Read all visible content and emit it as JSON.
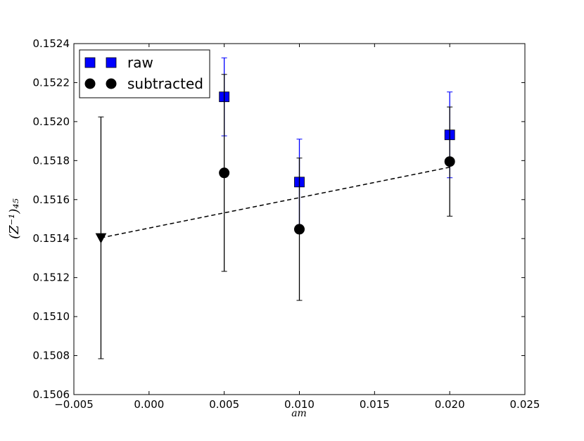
{
  "chart_data": {
    "type": "errorbar",
    "xlabel": "am",
    "ylabel": "(Z⁻¹)₄₅",
    "xlim": [
      -0.005,
      0.025
    ],
    "xticks": [
      {
        "value": -0.005,
        "label": "−0.005"
      },
      {
        "value": 0,
        "label": "0.000"
      },
      0.005,
      {
        "value": 0.01,
        "label": "0.010"
      },
      0.015,
      {
        "value": 0.02,
        "label": "0.020"
      },
      0.025
    ],
    "ylim": [
      0.1506,
      0.1524
    ],
    "yticks": [
      0.1506,
      0.1508,
      {
        "value": 0.151,
        "label": "0.1510"
      },
      0.1512,
      0.1514,
      0.1516,
      0.1518,
      {
        "value": 0.152,
        "label": "0.1520"
      },
      0.1522,
      0.1524
    ],
    "legend": "upper left",
    "series": [
      {
        "name": "raw",
        "color": "#0000ff",
        "marker": "square",
        "x": [
          0.005,
          0.01,
          0.02
        ],
        "values": [
          0.152127,
          0.15169,
          0.151932
        ],
        "errors": [
          0.0002,
          0.00022,
          0.00022
        ]
      },
      {
        "name": "subtracted",
        "color": "#000000",
        "marker": "circle",
        "x": [
          0.005,
          0.01,
          0.02
        ],
        "values": [
          0.151737,
          0.151448,
          0.151795
        ],
        "errors": [
          0.000505,
          0.000365,
          0.00028
        ]
      },
      {
        "color": "#000000",
        "marker": "triangle-down",
        "x": [
          -0.0032
        ],
        "values": [
          0.151404
        ],
        "errors": [
          0.00062
        ]
      },
      {
        "color": "#000000",
        "line": "dashed",
        "x": [
          -0.0032,
          0.02
        ],
        "values": [
          0.151404,
          0.151766
        ]
      }
    ]
  }
}
